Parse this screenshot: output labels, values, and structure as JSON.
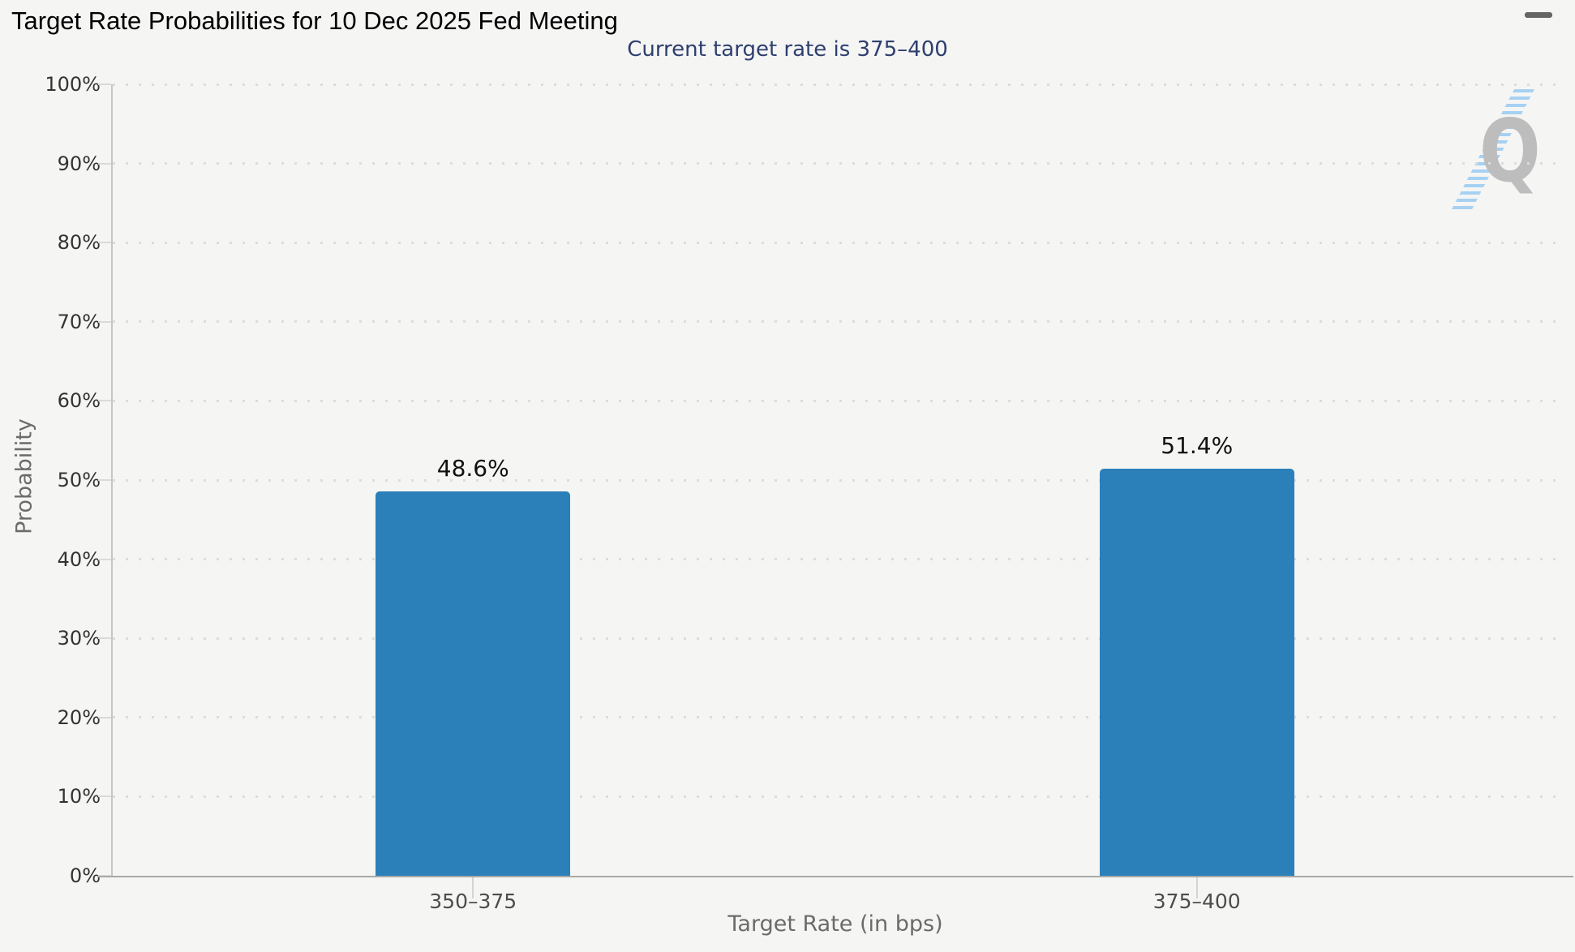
{
  "header": {
    "title": "Target Rate Probabilities for 10 Dec 2025 Fed Meeting",
    "subtitle": "Current target rate is 375–400",
    "menu_icon": "hamburger-menu-icon"
  },
  "watermark": {
    "letter": "Q"
  },
  "colors": {
    "background": "#f5f5f4",
    "bar_fill": "#2c80b9",
    "subtitle_text": "#2e3f6e",
    "title_text": "#000000",
    "axis_text": "#333333",
    "axis_title_text": "#6b6b6a",
    "grid_dot": "#dcdcdb",
    "watermark_gray": "#bdbdbd",
    "watermark_blue": "#8cc5f2"
  },
  "chart_data": {
    "type": "bar",
    "title": "Target Rate Probabilities for 10 Dec 2025 Fed Meeting",
    "subtitle": "Current target rate is 375–400",
    "categories": [
      "350–375",
      "375–400"
    ],
    "values": [
      48.6,
      51.4
    ],
    "value_labels": [
      "48.6%",
      "51.4%"
    ],
    "xlabel": "Target Rate (in bps)",
    "ylabel": "Probability",
    "ylim": [
      0,
      100
    ],
    "ytick_step": 10,
    "ytick_labels": [
      "0%",
      "10%",
      "20%",
      "30%",
      "40%",
      "50%",
      "60%",
      "70%",
      "80%",
      "90%",
      "100%"
    ],
    "legend": "none",
    "grid": "dotted-horizontal",
    "bar_color": "#2c80b9"
  }
}
